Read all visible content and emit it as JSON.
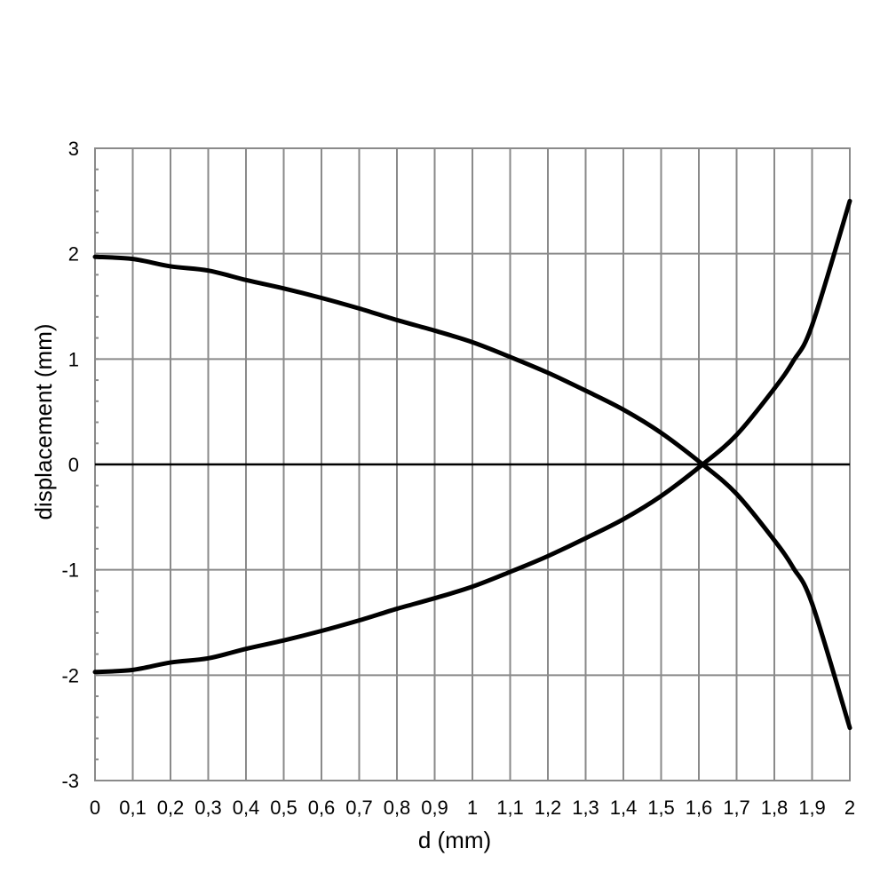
{
  "chart_data": {
    "type": "line",
    "title": "",
    "xlabel": "d (mm)",
    "ylabel": "displacement (mm)",
    "xlim": [
      0,
      2
    ],
    "ylim": [
      -3,
      3
    ],
    "grid": true,
    "legend": "none",
    "x_ticks": [
      0,
      0.1,
      0.2,
      0.3,
      0.4,
      0.5,
      0.6,
      0.7,
      0.8,
      0.9,
      1,
      1.1,
      1.2,
      1.3,
      1.4,
      1.5,
      1.6,
      1.7,
      1.8,
      1.9,
      2
    ],
    "x_tick_labels": [
      "0",
      "0,1",
      "0,2",
      "0,3",
      "0,4",
      "0,5",
      "0,6",
      "0,7",
      "0,8",
      "0,9",
      "1",
      "1,1",
      "1,2",
      "1,3",
      "1,4",
      "1,5",
      "1,6",
      "1,7",
      "1,8",
      "1,9",
      "2"
    ],
    "y_ticks": [
      -3,
      -2,
      -1,
      0,
      1,
      2,
      3
    ],
    "y_tick_labels": [
      "-3",
      "-2",
      "-1",
      "0",
      "1",
      "2",
      "3"
    ],
    "series_color": "#000000",
    "series": [
      {
        "x": [
          0,
          0.1,
          0.2,
          0.3,
          0.4,
          0.5,
          0.6,
          0.7,
          0.8,
          0.9,
          1.0,
          1.1,
          1.2,
          1.3,
          1.4,
          1.5,
          1.61,
          1.7,
          1.8,
          1.85,
          1.9,
          2.0
        ],
        "y": [
          1.97,
          1.95,
          1.88,
          1.84,
          1.75,
          1.67,
          1.58,
          1.48,
          1.37,
          1.27,
          1.16,
          1.02,
          0.87,
          0.7,
          0.52,
          0.3,
          0.0,
          -0.28,
          -0.72,
          -0.98,
          -1.32,
          -2.5
        ]
      },
      {
        "x": [
          0,
          0.1,
          0.2,
          0.3,
          0.4,
          0.5,
          0.6,
          0.7,
          0.8,
          0.9,
          1.0,
          1.1,
          1.2,
          1.3,
          1.4,
          1.5,
          1.61,
          1.7,
          1.8,
          1.85,
          1.9,
          2.0
        ],
        "y": [
          -1.97,
          -1.95,
          -1.88,
          -1.84,
          -1.75,
          -1.67,
          -1.58,
          -1.48,
          -1.37,
          -1.27,
          -1.16,
          -1.02,
          -0.87,
          -0.7,
          -0.52,
          -0.3,
          0.0,
          0.28,
          0.72,
          0.98,
          1.32,
          2.5
        ]
      }
    ]
  }
}
